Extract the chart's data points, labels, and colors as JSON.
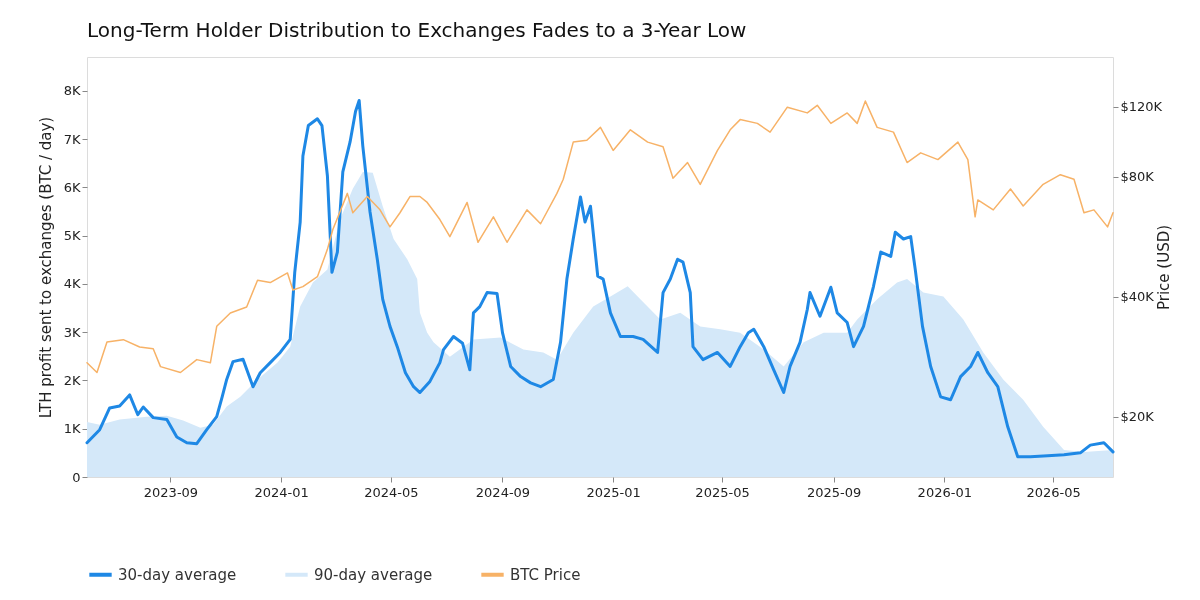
{
  "chart_data": {
    "type": "line",
    "title": "Long-Term Holder Distribution to Exchanges Fades to a 3-Year Low",
    "ylabel": "LTH profit sent to exchanges (BTC / day)",
    "y2label": "Price (USD)",
    "xlim": [
      "2023-06-01",
      "2026-07-06"
    ],
    "xticks": [
      "2023-09",
      "2024-01",
      "2024-05",
      "2024-09",
      "2025-01",
      "2025-05",
      "2025-09",
      "2026-01",
      "2026-05"
    ],
    "ylim": [
      0,
      8700
    ],
    "yticks": [
      0,
      {
        "value": 1000,
        "label": "1K"
      },
      {
        "value": 2000,
        "label": "2K"
      },
      {
        "value": 3000,
        "label": "3K"
      },
      {
        "value": 4000,
        "label": "4K"
      },
      {
        "value": 5000,
        "label": "5K"
      },
      {
        "value": 6000,
        "label": "6K"
      },
      {
        "value": 7000,
        "label": "7K"
      },
      {
        "value": 8000,
        "label": "8K"
      }
    ],
    "y2lim": [
      14100,
      160000
    ],
    "y2ticks": [
      {
        "value": 20000,
        "label": "$20K"
      },
      {
        "value": 40000,
        "label": "$40K"
      },
      {
        "value": 80000,
        "label": "$80K"
      },
      {
        "value": 120000,
        "label": "$120K"
      }
    ],
    "log": "y2",
    "grid": false,
    "legend": "bottom",
    "series": [
      {
        "name": "30-day average",
        "color": "#1e88e5",
        "x": [
          "2023-06-01",
          "2023-06-15",
          "2023-06-26",
          "2023-07-07",
          "2023-07-18",
          "2023-07-27",
          "2023-08-02",
          "2023-08-13",
          "2023-08-28",
          "2023-09-08",
          "2023-09-19",
          "2023-09-30",
          "2023-10-11",
          "2023-10-22",
          "2023-10-28",
          "2023-11-02",
          "2023-11-09",
          "2023-11-20",
          "2023-12-01",
          "2023-12-09",
          "2023-12-20",
          "2023-12-31",
          "2024-01-11",
          "2024-01-16",
          "2024-01-22",
          "2024-01-25",
          "2024-01-31",
          "2024-02-10",
          "2024-02-15",
          "2024-02-21",
          "2024-02-26",
          "2024-03-03",
          "2024-03-09",
          "2024-03-17",
          "2024-03-23",
          "2024-03-27",
          "2024-03-31",
          "2024-04-08",
          "2024-04-16",
          "2024-04-22",
          "2024-04-30",
          "2024-05-08",
          "2024-05-17",
          "2024-05-26",
          "2024-06-02",
          "2024-06-13",
          "2024-06-24",
          "2024-06-28",
          "2024-07-09",
          "2024-07-19",
          "2024-07-27",
          "2024-07-31",
          "2024-08-07",
          "2024-08-15",
          "2024-08-26",
          "2024-09-01",
          "2024-09-10",
          "2024-09-21",
          "2024-10-02",
          "2024-10-13",
          "2024-10-27",
          "2024-11-04",
          "2024-11-11",
          "2024-11-18",
          "2024-11-26",
          "2024-12-01",
          "2024-12-07",
          "2024-12-15",
          "2024-12-21",
          "2024-12-29",
          "2025-01-09",
          "2025-01-23",
          "2025-02-03",
          "2025-02-19",
          "2025-02-25",
          "2025-03-05",
          "2025-03-13",
          "2025-03-19",
          "2025-03-27",
          "2025-03-30",
          "2025-04-10",
          "2025-04-26",
          "2025-05-10",
          "2025-05-21",
          "2025-05-30",
          "2025-06-05",
          "2025-06-16",
          "2025-06-27",
          "2025-07-08",
          "2025-07-15",
          "2025-07-26",
          "2025-08-03",
          "2025-08-06",
          "2025-08-17",
          "2025-08-29",
          "2025-09-05",
          "2025-09-16",
          "2025-09-23",
          "2025-10-04",
          "2025-10-15",
          "2025-10-23",
          "2025-11-03",
          "2025-11-08",
          "2025-11-17",
          "2025-11-25",
          "2025-11-30",
          "2025-12-08",
          "2025-12-17",
          "2025-12-28",
          "2026-01-08",
          "2026-01-19",
          "2026-01-30",
          "2026-02-07",
          "2026-02-18",
          "2026-03-01",
          "2026-03-12",
          "2026-03-23",
          "2026-04-06",
          "2026-04-25",
          "2026-05-13",
          "2026-05-31",
          "2026-06-11",
          "2026-06-26",
          "2026-07-06"
        ],
        "values": [
          710,
          980,
          1430,
          1470,
          1700,
          1290,
          1450,
          1230,
          1190,
          830,
          710,
          690,
          980,
          1250,
          1660,
          2020,
          2390,
          2440,
          1870,
          2160,
          2370,
          2580,
          2850,
          4240,
          5280,
          6650,
          7280,
          7420,
          7280,
          6240,
          4240,
          4660,
          6320,
          6940,
          7570,
          7800,
          6860,
          5490,
          4510,
          3680,
          3120,
          2700,
          2160,
          1870,
          1750,
          1980,
          2370,
          2640,
          2910,
          2770,
          2220,
          3400,
          3530,
          3820,
          3800,
          2990,
          2290,
          2080,
          1950,
          1870,
          2020,
          2790,
          4100,
          4930,
          5800,
          5280,
          5610,
          4160,
          4100,
          3400,
          2910,
          2910,
          2850,
          2580,
          3820,
          4100,
          4510,
          4450,
          3820,
          2700,
          2430,
          2580,
          2290,
          2700,
          2990,
          3060,
          2700,
          2220,
          1750,
          2290,
          2790,
          3470,
          3820,
          3330,
          3930,
          3400,
          3200,
          2700,
          3120,
          3950,
          4660,
          4570,
          5070,
          4930,
          4980,
          4300,
          3120,
          2290,
          1660,
          1600,
          2080,
          2290,
          2580,
          2160,
          1870,
          1040,
          420,
          420,
          440,
          460,
          500,
          660,
          710,
          520
        ]
      },
      {
        "name": "90-day average",
        "type": "area",
        "color": "#d4e8f9",
        "x": [
          "2023-06-01",
          "2023-06-15",
          "2023-07-07",
          "2023-08-06",
          "2023-08-28",
          "2023-09-15",
          "2023-10-04",
          "2023-10-18",
          "2023-11-02",
          "2023-11-17",
          "2023-12-06",
          "2023-12-28",
          "2024-01-11",
          "2024-01-22",
          "2024-02-05",
          "2024-02-21",
          "2024-03-06",
          "2024-03-20",
          "2024-03-31",
          "2024-04-11",
          "2024-04-22",
          "2024-05-04",
          "2024-05-19",
          "2024-05-30",
          "2024-06-02",
          "2024-06-10",
          "2024-06-17",
          "2024-07-05",
          "2024-07-31",
          "2024-08-30",
          "2024-09-24",
          "2024-10-16",
          "2024-10-31",
          "2024-11-18",
          "2024-12-10",
          "2024-12-29",
          "2025-01-17",
          "2025-01-31",
          "2025-02-22",
          "2025-03-16",
          "2025-04-07",
          "2025-04-29",
          "2025-05-21",
          "2025-06-16",
          "2025-07-08",
          "2025-07-30",
          "2025-08-21",
          "2025-09-16",
          "2025-09-27",
          "2025-10-19",
          "2025-11-10",
          "2025-11-21",
          "2025-12-09",
          "2025-12-31",
          "2026-01-22",
          "2026-02-13",
          "2026-03-07",
          "2026-03-29",
          "2026-04-20",
          "2026-05-13",
          "2026-06-04",
          "2026-07-06"
        ],
        "values": [
          1140,
          1080,
          1190,
          1250,
          1270,
          1170,
          1020,
          1080,
          1460,
          1660,
          2020,
          2370,
          2700,
          3530,
          4030,
          4300,
          5340,
          5970,
          6320,
          6300,
          5610,
          4930,
          4510,
          4100,
          3400,
          2990,
          2790,
          2490,
          2850,
          2890,
          2640,
          2580,
          2430,
          2990,
          3530,
          3740,
          3950,
          3680,
          3260,
          3400,
          3120,
          3060,
          2990,
          2640,
          2290,
          2790,
          2990,
          2990,
          3260,
          3680,
          4030,
          4100,
          3820,
          3740,
          3260,
          2580,
          2020,
          1600,
          1040,
          560,
          520,
          560
        ]
      },
      {
        "name": "BTC Price",
        "axis": "y2",
        "color": "#f7b267",
        "x": [
          "2023-06-01",
          "2023-06-12",
          "2023-06-23",
          "2023-07-11",
          "2023-07-29",
          "2023-08-13",
          "2023-08-21",
          "2023-09-12",
          "2023-09-30",
          "2023-10-15",
          "2023-10-22",
          "2023-11-06",
          "2023-11-24",
          "2023-12-06",
          "2023-12-20",
          "2024-01-08",
          "2024-01-14",
          "2024-01-25",
          "2024-02-10",
          "2024-02-21",
          "2024-02-27",
          "2024-03-14",
          "2024-03-20",
          "2024-04-05",
          "2024-04-19",
          "2024-04-30",
          "2024-05-11",
          "2024-05-22",
          "2024-06-02",
          "2024-06-10",
          "2024-06-24",
          "2024-07-05",
          "2024-07-24",
          "2024-08-05",
          "2024-08-22",
          "2024-09-06",
          "2024-09-28",
          "2024-10-13",
          "2024-10-31",
          "2024-11-07",
          "2024-11-18",
          "2024-12-03",
          "2024-12-18",
          "2025-01-01",
          "2025-01-20",
          "2025-02-08",
          "2025-02-25",
          "2025-03-08",
          "2025-03-24",
          "2025-04-07",
          "2025-04-26",
          "2025-05-10",
          "2025-05-21",
          "2025-06-09",
          "2025-06-23",
          "2025-07-12",
          "2025-08-03",
          "2025-08-14",
          "2025-08-29",
          "2025-09-16",
          "2025-09-27",
          "2025-10-06",
          "2025-10-19",
          "2025-11-06",
          "2025-11-21",
          "2025-12-06",
          "2025-12-25",
          "2026-01-16",
          "2026-01-27",
          "2026-02-04",
          "2026-02-07",
          "2026-02-24",
          "2026-03-15",
          "2026-03-29",
          "2026-04-20",
          "2026-05-09",
          "2026-05-24",
          "2026-06-04",
          "2026-06-15",
          "2026-06-30",
          "2026-07-06"
        ],
        "values": [
          27300,
          25800,
          30800,
          31200,
          29900,
          29600,
          26700,
          25800,
          27800,
          27300,
          33700,
          36400,
          37700,
          44000,
          43400,
          45900,
          41600,
          42400,
          44900,
          52600,
          59000,
          72700,
          65000,
          71400,
          66100,
          59900,
          65000,
          71400,
          71400,
          69000,
          62500,
          56600,
          69000,
          54800,
          63500,
          54800,
          66100,
          61000,
          72700,
          78900,
          97800,
          98900,
          106500,
          93200,
          105000,
          97800,
          95200,
          79400,
          86900,
          76600,
          93200,
          105000,
          111400,
          109000,
          103600,
          119700,
          115800,
          121000,
          109000,
          115800,
          109000,
          124000,
          106500,
          103600,
          86900,
          91900,
          88400,
          97800,
          88400,
          63500,
          70000,
          66100,
          74600,
          67600,
          76600,
          81000,
          78900,
          65000,
          66100,
          59900,
          65000
        ]
      }
    ]
  }
}
